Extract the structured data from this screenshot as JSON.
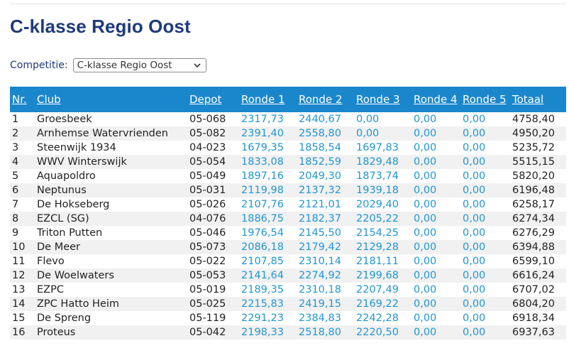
{
  "page": {
    "title": "C-klasse Regio Oost"
  },
  "competition": {
    "label": "Competitie:",
    "selected": "C-klasse Regio Oost"
  },
  "table": {
    "headers": {
      "nr": "Nr.",
      "club": "Club",
      "depot": "Depot",
      "r1": "Ronde 1",
      "r2": "Ronde 2",
      "r3": "Ronde 3",
      "r4": "Ronde 4",
      "r5": "Ronde 5",
      "total": "Totaal"
    },
    "rows": [
      {
        "nr": "1",
        "club": "Groesbeek",
        "depot": "05-068",
        "r1": "2317,73",
        "r2": "2440,67",
        "r3": "0,00",
        "r4": "0,00",
        "r5": "0,00",
        "total": "4758,40"
      },
      {
        "nr": "2",
        "club": "Arnhemse Watervrienden",
        "depot": "05-082",
        "r1": "2391,40",
        "r2": "2558,80",
        "r3": "0,00",
        "r4": "0,00",
        "r5": "0,00",
        "total": "4950,20"
      },
      {
        "nr": "3",
        "club": "Steenwijk 1934",
        "depot": "04-023",
        "r1": "1679,35",
        "r2": "1858,54",
        "r3": "1697,83",
        "r4": "0,00",
        "r5": "0,00",
        "total": "5235,72"
      },
      {
        "nr": "4",
        "club": "WWV Winterswijk",
        "depot": "05-054",
        "r1": "1833,08",
        "r2": "1852,59",
        "r3": "1829,48",
        "r4": "0,00",
        "r5": "0,00",
        "total": "5515,15"
      },
      {
        "nr": "5",
        "club": "Aquapoldro",
        "depot": "05-049",
        "r1": "1897,16",
        "r2": "2049,30",
        "r3": "1873,74",
        "r4": "0,00",
        "r5": "0,00",
        "total": "5820,20"
      },
      {
        "nr": "6",
        "club": "Neptunus",
        "depot": "05-031",
        "r1": "2119,98",
        "r2": "2137,32",
        "r3": "1939,18",
        "r4": "0,00",
        "r5": "0,00",
        "total": "6196,48"
      },
      {
        "nr": "7",
        "club": "De Hokseberg",
        "depot": "05-026",
        "r1": "2107,76",
        "r2": "2121,01",
        "r3": "2029,40",
        "r4": "0,00",
        "r5": "0,00",
        "total": "6258,17"
      },
      {
        "nr": "8",
        "club": "EZCL (SG)",
        "depot": "04-076",
        "r1": "1886,75",
        "r2": "2182,37",
        "r3": "2205,22",
        "r4": "0,00",
        "r5": "0,00",
        "total": "6274,34"
      },
      {
        "nr": "9",
        "club": "Triton Putten",
        "depot": "05-046",
        "r1": "1976,54",
        "r2": "2145,50",
        "r3": "2154,25",
        "r4": "0,00",
        "r5": "0,00",
        "total": "6276,29"
      },
      {
        "nr": "10",
        "club": "De Meer",
        "depot": "05-073",
        "r1": "2086,18",
        "r2": "2179,42",
        "r3": "2129,28",
        "r4": "0,00",
        "r5": "0,00",
        "total": "6394,88"
      },
      {
        "nr": "11",
        "club": "Flevo",
        "depot": "05-022",
        "r1": "2107,85",
        "r2": "2310,14",
        "r3": "2181,11",
        "r4": "0,00",
        "r5": "0,00",
        "total": "6599,10"
      },
      {
        "nr": "12",
        "club": "De Woelwaters",
        "depot": "05-053",
        "r1": "2141,64",
        "r2": "2274,92",
        "r3": "2199,68",
        "r4": "0,00",
        "r5": "0,00",
        "total": "6616,24"
      },
      {
        "nr": "13",
        "club": "EZPC",
        "depot": "05-019",
        "r1": "2189,35",
        "r2": "2310,18",
        "r3": "2207,49",
        "r4": "0,00",
        "r5": "0,00",
        "total": "6707,02"
      },
      {
        "nr": "14",
        "club": "ZPC Hatto Heim",
        "depot": "05-025",
        "r1": "2215,83",
        "r2": "2419,15",
        "r3": "2169,22",
        "r4": "0,00",
        "r5": "0,00",
        "total": "6804,20"
      },
      {
        "nr": "15",
        "club": "De Spreng",
        "depot": "05-119",
        "r1": "2291,23",
        "r2": "2384,83",
        "r3": "2242,28",
        "r4": "0,00",
        "r5": "0,00",
        "total": "6918,34"
      },
      {
        "nr": "16",
        "club": "Proteus",
        "depot": "05-042",
        "r1": "2198,33",
        "r2": "2518,80",
        "r3": "2220,50",
        "r4": "0,00",
        "r5": "0,00",
        "total": "6937,63"
      }
    ]
  },
  "colors": {
    "title": "#1f3b7a",
    "header_bg": "#1a87cc",
    "round_value": "#2196d3",
    "row_alt": "#f1f1f1"
  },
  "icons": {
    "select": "chevron-down-icon"
  }
}
